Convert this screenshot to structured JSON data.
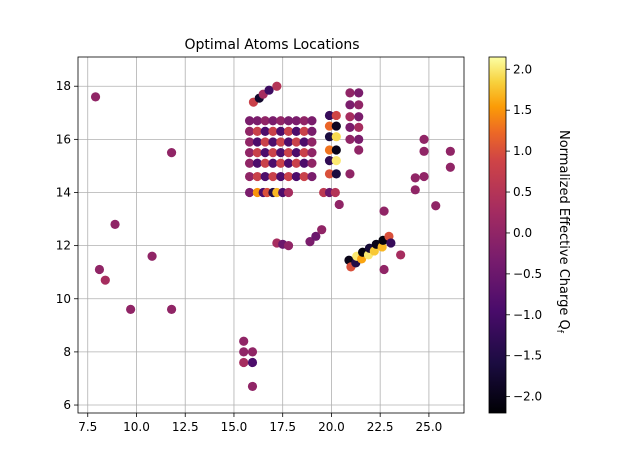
{
  "chart_data": {
    "type": "scatter",
    "title": "Optimal Atoms Locations",
    "xlabel": "",
    "ylabel": "",
    "xlim": [
      7.0,
      26.8
    ],
    "ylim": [
      5.7,
      19.1
    ],
    "xticks": [
      "7.5",
      "10.0",
      "12.5",
      "15.0",
      "17.5",
      "20.0",
      "22.5",
      "25.0"
    ],
    "xtick_values": [
      7.5,
      10.0,
      12.5,
      15.0,
      17.5,
      20.0,
      22.5,
      25.0
    ],
    "yticks": [
      "6",
      "8",
      "10",
      "12",
      "14",
      "16",
      "18"
    ],
    "ytick_values": [
      6,
      8,
      10,
      12,
      14,
      16,
      18
    ],
    "grid": true,
    "colormap": "inferno",
    "colorbar": {
      "label": "Normalized Effective Charge Q",
      "label_subscript": "f",
      "range": [
        -2.2,
        2.15
      ],
      "ticks": [
        "−2.0",
        "−1.5",
        "−1.0",
        "−0.5",
        "0.0",
        "0.5",
        "1.0",
        "1.5",
        "2.0"
      ],
      "tick_values": [
        -2.0,
        -1.5,
        -1.0,
        -0.5,
        0.0,
        0.5,
        1.0,
        1.5,
        2.0
      ]
    },
    "points": [
      {
        "x": 7.9,
        "y": 17.6,
        "c": 0.0
      },
      {
        "x": 8.1,
        "y": 11.1,
        "c": 0.0
      },
      {
        "x": 8.4,
        "y": 10.7,
        "c": 0.3
      },
      {
        "x": 8.9,
        "y": 12.8,
        "c": 0.0
      },
      {
        "x": 9.7,
        "y": 9.6,
        "c": 0.0
      },
      {
        "x": 10.8,
        "y": 11.6,
        "c": 0.0
      },
      {
        "x": 11.8,
        "y": 15.5,
        "c": 0.0
      },
      {
        "x": 11.8,
        "y": 9.6,
        "c": 0.0
      },
      {
        "x": 15.5,
        "y": 8.4,
        "c": 0.0
      },
      {
        "x": 15.5,
        "y": 8.0,
        "c": 0.0
      },
      {
        "x": 15.5,
        "y": 7.6,
        "c": 0.3
      },
      {
        "x": 15.95,
        "y": 8.0,
        "c": 0.0
      },
      {
        "x": 15.95,
        "y": 7.6,
        "c": -0.9
      },
      {
        "x": 15.95,
        "y": 6.7,
        "c": 0.0
      },
      {
        "x": 16.0,
        "y": 17.4,
        "c": 0.8
      },
      {
        "x": 16.3,
        "y": 17.55,
        "c": -1.8
      },
      {
        "x": 16.5,
        "y": 17.7,
        "c": 0.3
      },
      {
        "x": 16.8,
        "y": 17.85,
        "c": -1.1
      },
      {
        "x": 17.2,
        "y": 18.0,
        "c": 0.5
      },
      {
        "x": 15.8,
        "y": 16.7,
        "c": -0.3
      },
      {
        "x": 16.2,
        "y": 16.7,
        "c": -0.3
      },
      {
        "x": 16.6,
        "y": 16.7,
        "c": 0.0
      },
      {
        "x": 17.0,
        "y": 16.7,
        "c": -0.3
      },
      {
        "x": 17.4,
        "y": 16.7,
        "c": 0.0
      },
      {
        "x": 17.8,
        "y": 16.7,
        "c": -0.3
      },
      {
        "x": 18.2,
        "y": 16.7,
        "c": -0.3
      },
      {
        "x": 18.6,
        "y": 16.7,
        "c": 0.0
      },
      {
        "x": 19.0,
        "y": 16.7,
        "c": -0.3
      },
      {
        "x": 15.8,
        "y": 16.3,
        "c": 0.0
      },
      {
        "x": 16.2,
        "y": 16.3,
        "c": 0.8
      },
      {
        "x": 16.6,
        "y": 16.3,
        "c": -0.9
      },
      {
        "x": 17.0,
        "y": 16.3,
        "c": 0.8
      },
      {
        "x": 17.4,
        "y": 16.3,
        "c": -0.9
      },
      {
        "x": 17.8,
        "y": 16.3,
        "c": 0.8
      },
      {
        "x": 18.2,
        "y": 16.3,
        "c": -0.9
      },
      {
        "x": 18.6,
        "y": 16.3,
        "c": 0.8
      },
      {
        "x": 19.0,
        "y": 16.3,
        "c": -0.3
      },
      {
        "x": 15.8,
        "y": 15.9,
        "c": 0.0
      },
      {
        "x": 16.2,
        "y": 15.9,
        "c": -0.9
      },
      {
        "x": 16.6,
        "y": 15.9,
        "c": 0.8
      },
      {
        "x": 17.0,
        "y": 15.9,
        "c": -0.9
      },
      {
        "x": 17.4,
        "y": 15.9,
        "c": 0.8
      },
      {
        "x": 17.8,
        "y": 15.9,
        "c": -0.9
      },
      {
        "x": 18.2,
        "y": 15.9,
        "c": 0.8
      },
      {
        "x": 18.6,
        "y": 15.9,
        "c": -0.9
      },
      {
        "x": 19.0,
        "y": 15.9,
        "c": 0.0
      },
      {
        "x": 15.8,
        "y": 15.5,
        "c": 0.0
      },
      {
        "x": 16.2,
        "y": 15.5,
        "c": 0.8
      },
      {
        "x": 16.6,
        "y": 15.5,
        "c": -0.9
      },
      {
        "x": 17.0,
        "y": 15.5,
        "c": 0.8
      },
      {
        "x": 17.4,
        "y": 15.5,
        "c": -0.9
      },
      {
        "x": 17.8,
        "y": 15.5,
        "c": 0.8
      },
      {
        "x": 18.2,
        "y": 15.5,
        "c": -0.9
      },
      {
        "x": 18.6,
        "y": 15.5,
        "c": 0.8
      },
      {
        "x": 19.0,
        "y": 15.5,
        "c": 0.0
      },
      {
        "x": 15.8,
        "y": 15.1,
        "c": 0.0
      },
      {
        "x": 16.2,
        "y": 15.1,
        "c": -0.9
      },
      {
        "x": 16.6,
        "y": 15.1,
        "c": 0.8
      },
      {
        "x": 17.0,
        "y": 15.1,
        "c": -0.9
      },
      {
        "x": 17.4,
        "y": 15.1,
        "c": 0.8
      },
      {
        "x": 17.8,
        "y": 15.1,
        "c": -0.9
      },
      {
        "x": 18.2,
        "y": 15.1,
        "c": 0.8
      },
      {
        "x": 18.6,
        "y": 15.1,
        "c": -0.9
      },
      {
        "x": 19.0,
        "y": 15.1,
        "c": 0.0
      },
      {
        "x": 15.8,
        "y": 14.6,
        "c": 0.0
      },
      {
        "x": 16.2,
        "y": 14.6,
        "c": 0.8
      },
      {
        "x": 16.6,
        "y": 14.6,
        "c": -0.9
      },
      {
        "x": 17.0,
        "y": 14.6,
        "c": 0.8
      },
      {
        "x": 17.4,
        "y": 14.6,
        "c": -0.9
      },
      {
        "x": 17.8,
        "y": 14.6,
        "c": 0.8
      },
      {
        "x": 18.2,
        "y": 14.6,
        "c": -0.9
      },
      {
        "x": 18.6,
        "y": 14.6,
        "c": 0.8
      },
      {
        "x": 19.0,
        "y": 14.6,
        "c": -0.3
      },
      {
        "x": 15.8,
        "y": 14.0,
        "c": -0.3
      },
      {
        "x": 16.2,
        "y": 14.0,
        "c": 1.5
      },
      {
        "x": 16.5,
        "y": 14.0,
        "c": -0.9
      },
      {
        "x": 16.7,
        "y": 14.0,
        "c": 1.0
      },
      {
        "x": 17.0,
        "y": 14.0,
        "c": -1.5
      },
      {
        "x": 17.2,
        "y": 14.0,
        "c": 1.7
      },
      {
        "x": 17.5,
        "y": 14.0,
        "c": -0.9
      },
      {
        "x": 17.8,
        "y": 14.0,
        "c": 0.3
      },
      {
        "x": 19.9,
        "y": 16.9,
        "c": -1.2
      },
      {
        "x": 19.9,
        "y": 16.5,
        "c": 1.2
      },
      {
        "x": 19.9,
        "y": 16.1,
        "c": -1.6
      },
      {
        "x": 19.9,
        "y": 15.6,
        "c": 1.3
      },
      {
        "x": 19.9,
        "y": 15.2,
        "c": -1.3
      },
      {
        "x": 19.9,
        "y": 14.7,
        "c": 1.0
      },
      {
        "x": 20.25,
        "y": 16.9,
        "c": 0.9
      },
      {
        "x": 20.25,
        "y": 16.5,
        "c": -1.9
      },
      {
        "x": 20.25,
        "y": 16.1,
        "c": 1.9
      },
      {
        "x": 20.25,
        "y": 15.6,
        "c": -2.0
      },
      {
        "x": 20.25,
        "y": 15.2,
        "c": 2.0
      },
      {
        "x": 20.25,
        "y": 14.7,
        "c": -1.6
      },
      {
        "x": 19.6,
        "y": 14.0,
        "c": 0.6
      },
      {
        "x": 19.9,
        "y": 14.0,
        "c": -0.5
      },
      {
        "x": 20.2,
        "y": 14.0,
        "c": 0.5
      },
      {
        "x": 20.4,
        "y": 13.55,
        "c": 0.0
      },
      {
        "x": 20.95,
        "y": 17.75,
        "c": 0.0
      },
      {
        "x": 20.95,
        "y": 17.3,
        "c": -0.3
      },
      {
        "x": 20.95,
        "y": 16.85,
        "c": 0.3
      },
      {
        "x": 20.95,
        "y": 16.45,
        "c": -0.3
      },
      {
        "x": 20.95,
        "y": 16.0,
        "c": 0.0
      },
      {
        "x": 20.95,
        "y": 14.7,
        "c": 0.0
      },
      {
        "x": 21.4,
        "y": 17.75,
        "c": -0.3
      },
      {
        "x": 21.4,
        "y": 17.3,
        "c": 0.0
      },
      {
        "x": 21.4,
        "y": 16.85,
        "c": -0.3
      },
      {
        "x": 21.4,
        "y": 16.45,
        "c": 0.3
      },
      {
        "x": 21.4,
        "y": 16.0,
        "c": -0.3
      },
      {
        "x": 21.4,
        "y": 15.6,
        "c": 0.0
      },
      {
        "x": 17.2,
        "y": 12.1,
        "c": 0.3
      },
      {
        "x": 17.5,
        "y": 12.05,
        "c": -0.5
      },
      {
        "x": 17.8,
        "y": 12.0,
        "c": 0.0
      },
      {
        "x": 18.9,
        "y": 12.15,
        "c": -0.3
      },
      {
        "x": 19.2,
        "y": 12.35,
        "c": -0.5
      },
      {
        "x": 19.5,
        "y": 12.6,
        "c": 0.0
      },
      {
        "x": 20.9,
        "y": 11.45,
        "c": -2.0
      },
      {
        "x": 21.0,
        "y": 11.2,
        "c": 1.0
      },
      {
        "x": 21.25,
        "y": 11.35,
        "c": -1.5
      },
      {
        "x": 21.3,
        "y": 11.6,
        "c": 2.0
      },
      {
        "x": 21.55,
        "y": 11.5,
        "c": 1.6
      },
      {
        "x": 21.6,
        "y": 11.75,
        "c": -2.1
      },
      {
        "x": 21.9,
        "y": 11.65,
        "c": 2.0
      },
      {
        "x": 21.95,
        "y": 11.9,
        "c": -1.7
      },
      {
        "x": 22.2,
        "y": 11.8,
        "c": 1.8
      },
      {
        "x": 22.3,
        "y": 12.05,
        "c": -2.0
      },
      {
        "x": 22.6,
        "y": 11.95,
        "c": 1.7
      },
      {
        "x": 22.65,
        "y": 12.2,
        "c": -2.1
      },
      {
        "x": 22.95,
        "y": 12.35,
        "c": 1.0
      },
      {
        "x": 23.05,
        "y": 12.1,
        "c": -1.2
      },
      {
        "x": 22.7,
        "y": 13.3,
        "c": 0.0
      },
      {
        "x": 22.7,
        "y": 11.1,
        "c": 0.0
      },
      {
        "x": 23.55,
        "y": 11.65,
        "c": 0.3
      },
      {
        "x": 24.3,
        "y": 14.55,
        "c": 0.0
      },
      {
        "x": 24.3,
        "y": 14.1,
        "c": 0.0
      },
      {
        "x": 24.75,
        "y": 16.0,
        "c": 0.0
      },
      {
        "x": 24.75,
        "y": 15.55,
        "c": 0.0
      },
      {
        "x": 24.75,
        "y": 14.6,
        "c": 0.0
      },
      {
        "x": 25.35,
        "y": 13.5,
        "c": 0.0
      },
      {
        "x": 26.1,
        "y": 15.55,
        "c": 0.0
      },
      {
        "x": 26.1,
        "y": 14.95,
        "c": 0.0
      }
    ]
  }
}
